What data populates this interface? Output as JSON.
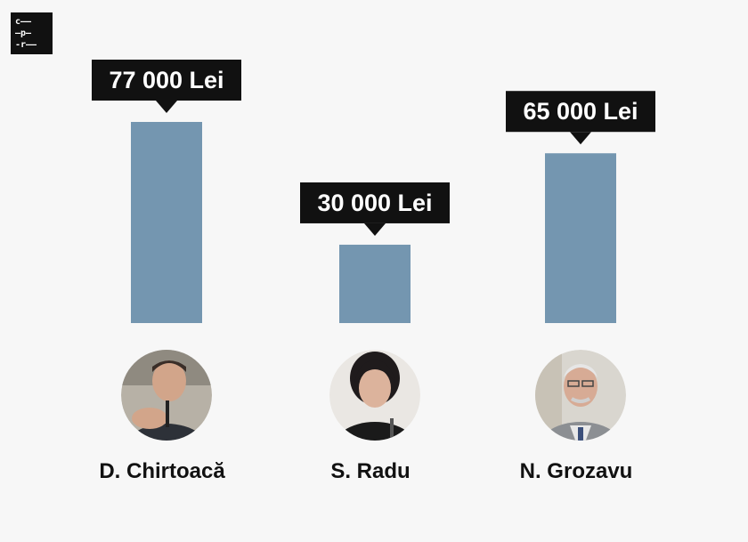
{
  "logo": {
    "lines": [
      "c——",
      "—p—",
      "-r——"
    ]
  },
  "colors": {
    "background": "#f7f7f7",
    "bar": "#7496b0",
    "callout": "#111111",
    "callout_text": "#ffffff"
  },
  "chart_data": {
    "type": "bar",
    "categories": [
      "D. Chirtoacă",
      "S. Radu",
      "N. Grozavu"
    ],
    "values": [
      77000,
      30000,
      65000
    ],
    "data_labels": [
      "77 000 Lei",
      "30 000 Lei",
      "65 000 Lei"
    ],
    "unit": "Lei",
    "title": "",
    "xlabel": "",
    "ylabel": "",
    "ylim": [
      0,
      77000
    ],
    "grid": false,
    "legend": "none"
  }
}
